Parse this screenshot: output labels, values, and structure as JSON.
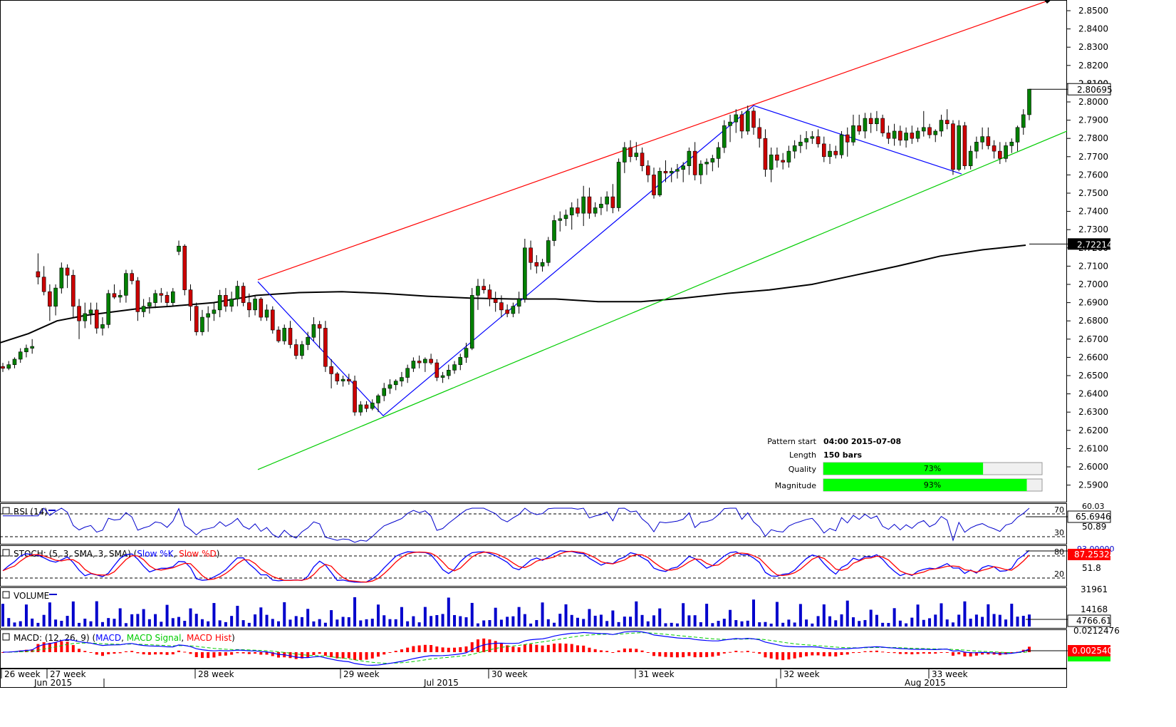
{
  "chart_data": {
    "type": "candlestick",
    "price_axis": {
      "range": [
        2.585,
        2.855
      ],
      "ticks": [
        "2.8500",
        "2.8400",
        "2.8300",
        "2.8200",
        "2.8100",
        "2.8000",
        "2.7900",
        "2.7800",
        "2.7700",
        "2.7600",
        "2.7500",
        "2.7400",
        "2.7300",
        "2.7200",
        "2.7100",
        "2.7000",
        "2.6900",
        "2.6800",
        "2.6700",
        "2.6600",
        "2.6500",
        "2.6400",
        "2.6300",
        "2.6200",
        "2.6100",
        "2.6000",
        "2.5900"
      ],
      "current_price_label": "2.80695",
      "ma_label": "2.72214",
      "hidden_tick_label": "2.8100"
    },
    "candles_o_h_l_c": [
      [
        2.655,
        2.657,
        2.652,
        2.654
      ],
      [
        2.654,
        2.658,
        2.653,
        2.656
      ],
      [
        2.656,
        2.66,
        2.654,
        2.659
      ],
      [
        2.659,
        2.665,
        2.657,
        2.663
      ],
      [
        2.663,
        2.667,
        2.66,
        2.665
      ],
      [
        2.665,
        2.67,
        2.662,
        2.666
      ],
      [
        2.707,
        2.717,
        2.7,
        2.704
      ],
      [
        2.704,
        2.71,
        2.694,
        2.696
      ],
      [
        2.696,
        2.7,
        2.68,
        2.688
      ],
      [
        2.688,
        2.7,
        2.683,
        2.698
      ],
      [
        2.698,
        2.712,
        2.695,
        2.709
      ],
      [
        2.709,
        2.711,
        2.698,
        2.705
      ],
      [
        2.705,
        2.708,
        2.682,
        2.688
      ],
      [
        2.688,
        2.692,
        2.67,
        2.68
      ],
      [
        2.68,
        2.69,
        2.676,
        2.684
      ],
      [
        2.684,
        2.69,
        2.678,
        2.686
      ],
      [
        2.686,
        2.69,
        2.673,
        2.676
      ],
      [
        2.676,
        2.682,
        2.672,
        2.678
      ],
      [
        2.678,
        2.697,
        2.676,
        2.695
      ],
      [
        2.695,
        2.7,
        2.692,
        2.693
      ],
      [
        2.693,
        2.697,
        2.69,
        2.694
      ],
      [
        2.694,
        2.708,
        2.69,
        2.706
      ],
      [
        2.706,
        2.708,
        2.7,
        2.702
      ],
      [
        2.702,
        2.704,
        2.68,
        2.685
      ],
      [
        2.685,
        2.692,
        2.682,
        2.688
      ],
      [
        2.688,
        2.693,
        2.684,
        2.69
      ],
      [
        2.69,
        2.697,
        2.687,
        2.695
      ],
      [
        2.695,
        2.698,
        2.69,
        2.694
      ],
      [
        2.694,
        2.696,
        2.688,
        2.69
      ],
      [
        2.69,
        2.698,
        2.688,
        2.696
      ],
      [
        2.718,
        2.724,
        2.716,
        2.721
      ],
      [
        2.721,
        2.722,
        2.694,
        2.697
      ],
      [
        2.697,
        2.7,
        2.68,
        2.688
      ],
      [
        2.688,
        2.69,
        2.672,
        2.674
      ],
      [
        2.674,
        2.686,
        2.672,
        2.682
      ],
      [
        2.682,
        2.688,
        2.674,
        2.684
      ],
      [
        2.684,
        2.69,
        2.68,
        2.686
      ],
      [
        2.686,
        2.697,
        2.682,
        2.694
      ],
      [
        2.694,
        2.698,
        2.685,
        2.688
      ],
      [
        2.688,
        2.696,
        2.685,
        2.692
      ],
      [
        2.692,
        2.702,
        2.688,
        2.699
      ],
      [
        2.699,
        2.701,
        2.688,
        2.69
      ],
      [
        2.69,
        2.695,
        2.682,
        2.686
      ],
      [
        2.686,
        2.694,
        2.683,
        2.692
      ],
      [
        2.692,
        2.693,
        2.68,
        2.682
      ],
      [
        2.682,
        2.689,
        2.68,
        2.686
      ],
      [
        2.686,
        2.688,
        2.673,
        2.675
      ],
      [
        2.675,
        2.677,
        2.668,
        2.669
      ],
      [
        2.669,
        2.678,
        2.667,
        2.676
      ],
      [
        2.676,
        2.68,
        2.665,
        2.667
      ],
      [
        2.667,
        2.67,
        2.659,
        2.661
      ],
      [
        2.661,
        2.669,
        2.659,
        2.667
      ],
      [
        2.667,
        2.674,
        2.664,
        2.671
      ],
      [
        2.671,
        2.682,
        2.669,
        2.678
      ],
      [
        2.678,
        2.68,
        2.665,
        2.676
      ],
      [
        2.676,
        2.68,
        2.652,
        2.655
      ],
      [
        2.655,
        2.659,
        2.643,
        2.651
      ],
      [
        2.651,
        2.652,
        2.645,
        2.647
      ],
      [
        2.647,
        2.65,
        2.644,
        2.648
      ],
      [
        2.648,
        2.651,
        2.645,
        2.647
      ],
      [
        2.647,
        2.65,
        2.628,
        2.63
      ],
      [
        2.63,
        2.636,
        2.628,
        2.634
      ],
      [
        2.634,
        2.636,
        2.63,
        2.632
      ],
      [
        2.632,
        2.637,
        2.631,
        2.635
      ],
      [
        2.635,
        2.64,
        2.63,
        2.639
      ],
      [
        2.639,
        2.646,
        2.636,
        2.643
      ],
      [
        2.643,
        2.648,
        2.64,
        2.645
      ],
      [
        2.645,
        2.648,
        2.642,
        2.647
      ],
      [
        2.647,
        2.652,
        2.644,
        2.649
      ],
      [
        2.649,
        2.656,
        2.646,
        2.654
      ],
      [
        2.654,
        2.66,
        2.652,
        2.658
      ],
      [
        2.658,
        2.661,
        2.654,
        2.657
      ],
      [
        2.657,
        2.66,
        2.652,
        2.659
      ],
      [
        2.659,
        2.662,
        2.656,
        2.657
      ],
      [
        2.657,
        2.659,
        2.647,
        2.649
      ],
      [
        2.649,
        2.652,
        2.646,
        2.65
      ],
      [
        2.65,
        2.656,
        2.648,
        2.653
      ],
      [
        2.653,
        2.658,
        2.651,
        2.656
      ],
      [
        2.656,
        2.662,
        2.653,
        2.66
      ],
      [
        2.66,
        2.668,
        2.657,
        2.665
      ],
      [
        2.665,
        2.698,
        2.664,
        2.694
      ],
      [
        2.694,
        2.703,
        2.686,
        2.699
      ],
      [
        2.699,
        2.703,
        2.695,
        2.697
      ],
      [
        2.697,
        2.7,
        2.688,
        2.692
      ],
      [
        2.692,
        2.696,
        2.685,
        2.69
      ],
      [
        2.69,
        2.694,
        2.682,
        2.686
      ],
      [
        2.686,
        2.689,
        2.682,
        2.684
      ],
      [
        2.684,
        2.69,
        2.682,
        2.688
      ],
      [
        2.688,
        2.696,
        2.684,
        2.692
      ],
      [
        2.692,
        2.725,
        2.69,
        2.72
      ],
      [
        2.72,
        2.724,
        2.708,
        2.712
      ],
      [
        2.712,
        2.716,
        2.706,
        2.71
      ],
      [
        2.71,
        2.714,
        2.707,
        2.712
      ],
      [
        2.712,
        2.726,
        2.71,
        2.724
      ],
      [
        2.724,
        2.738,
        2.721,
        2.735
      ],
      [
        2.735,
        2.74,
        2.729,
        2.736
      ],
      [
        2.736,
        2.741,
        2.732,
        2.738
      ],
      [
        2.738,
        2.745,
        2.73,
        2.742
      ],
      [
        2.742,
        2.747,
        2.737,
        2.739
      ],
      [
        2.739,
        2.754,
        2.732,
        2.748
      ],
      [
        2.748,
        2.753,
        2.736,
        2.739
      ],
      [
        2.739,
        2.745,
        2.737,
        2.742
      ],
      [
        2.742,
        2.748,
        2.738,
        2.744
      ],
      [
        2.744,
        2.751,
        2.74,
        2.748
      ],
      [
        2.748,
        2.755,
        2.739,
        2.742
      ],
      [
        2.742,
        2.769,
        2.74,
        2.767
      ],
      [
        2.767,
        2.778,
        2.761,
        2.775
      ],
      [
        2.775,
        2.779,
        2.767,
        2.77
      ],
      [
        2.77,
        2.778,
        2.768,
        2.772
      ],
      [
        2.772,
        2.775,
        2.762,
        2.765
      ],
      [
        2.765,
        2.768,
        2.756,
        2.76
      ],
      [
        2.76,
        2.764,
        2.747,
        2.749
      ],
      [
        2.749,
        2.764,
        2.748,
        2.762
      ],
      [
        2.762,
        2.768,
        2.756,
        2.761
      ],
      [
        2.761,
        2.764,
        2.756,
        2.762
      ],
      [
        2.762,
        2.766,
        2.758,
        2.763
      ],
      [
        2.763,
        2.767,
        2.756,
        2.765
      ],
      [
        2.765,
        2.775,
        2.76,
        2.773
      ],
      [
        2.773,
        2.778,
        2.757,
        2.76
      ],
      [
        2.76,
        2.768,
        2.755,
        2.766
      ],
      [
        2.766,
        2.769,
        2.76,
        2.767
      ],
      [
        2.767,
        2.771,
        2.762,
        2.769
      ],
      [
        2.769,
        2.778,
        2.764,
        2.775
      ],
      [
        2.775,
        2.79,
        2.772,
        2.787
      ],
      [
        2.787,
        2.793,
        2.778,
        2.789
      ],
      [
        2.789,
        2.796,
        2.783,
        2.793
      ],
      [
        2.793,
        2.795,
        2.78,
        2.784
      ],
      [
        2.784,
        2.798,
        2.782,
        2.795
      ],
      [
        2.795,
        2.797,
        2.782,
        2.786
      ],
      [
        2.786,
        2.791,
        2.775,
        2.78
      ],
      [
        2.78,
        2.785,
        2.759,
        2.763
      ],
      [
        2.763,
        2.775,
        2.756,
        2.771
      ],
      [
        2.771,
        2.775,
        2.764,
        2.768
      ],
      [
        2.768,
        2.772,
        2.763,
        2.767
      ],
      [
        2.767,
        2.776,
        2.764,
        2.773
      ],
      [
        2.773,
        2.779,
        2.769,
        2.776
      ],
      [
        2.776,
        2.782,
        2.772,
        2.778
      ],
      [
        2.778,
        2.784,
        2.774,
        2.78
      ],
      [
        2.78,
        2.784,
        2.777,
        2.781
      ],
      [
        2.781,
        2.785,
        2.775,
        2.777
      ],
      [
        2.777,
        2.781,
        2.767,
        2.77
      ],
      [
        2.77,
        2.777,
        2.766,
        2.773
      ],
      [
        2.773,
        2.776,
        2.769,
        2.771
      ],
      [
        2.771,
        2.784,
        2.769,
        2.782
      ],
      [
        2.782,
        2.786,
        2.77,
        2.778
      ],
      [
        2.778,
        2.793,
        2.776,
        2.787
      ],
      [
        2.787,
        2.793,
        2.782,
        2.784
      ],
      [
        2.784,
        2.794,
        2.78,
        2.791
      ],
      [
        2.791,
        2.794,
        2.783,
        2.788
      ],
      [
        2.788,
        2.795,
        2.784,
        2.791
      ],
      [
        2.791,
        2.793,
        2.781,
        2.783
      ],
      [
        2.783,
        2.787,
        2.777,
        2.78
      ],
      [
        2.78,
        2.788,
        2.776,
        2.784
      ],
      [
        2.784,
        2.787,
        2.776,
        2.779
      ],
      [
        2.779,
        2.786,
        2.775,
        2.783
      ],
      [
        2.783,
        2.787,
        2.777,
        2.78
      ],
      [
        2.78,
        2.786,
        2.778,
        2.784
      ],
      [
        2.784,
        2.795,
        2.781,
        2.786
      ],
      [
        2.786,
        2.788,
        2.78,
        2.782
      ],
      [
        2.782,
        2.785,
        2.778,
        2.784
      ],
      [
        2.784,
        2.793,
        2.781,
        2.79
      ],
      [
        2.79,
        2.796,
        2.785,
        2.788
      ],
      [
        2.788,
        2.79,
        2.76,
        2.763
      ],
      [
        2.763,
        2.79,
        2.762,
        2.787
      ],
      [
        2.787,
        2.789,
        2.763,
        2.765
      ],
      [
        2.765,
        2.776,
        2.763,
        2.773
      ],
      [
        2.773,
        2.781,
        2.769,
        2.778
      ],
      [
        2.778,
        2.786,
        2.774,
        2.781
      ],
      [
        2.781,
        2.786,
        2.774,
        2.776
      ],
      [
        2.776,
        2.779,
        2.769,
        2.773
      ],
      [
        2.773,
        2.778,
        2.766,
        2.769
      ],
      [
        2.769,
        2.778,
        2.767,
        2.776
      ],
      [
        2.776,
        2.78,
        2.772,
        2.778
      ],
      [
        2.778,
        2.787,
        2.773,
        2.786
      ],
      [
        2.786,
        2.796,
        2.782,
        2.793
      ],
      [
        2.793,
        2.807,
        2.79,
        2.807
      ]
    ],
    "moving_average": [
      [
        0,
        2.668
      ],
      [
        40,
        2.673
      ],
      [
        80,
        2.68
      ],
      [
        120,
        2.683
      ],
      [
        160,
        2.685
      ],
      [
        200,
        2.687
      ],
      [
        240,
        2.688
      ],
      [
        300,
        2.69
      ],
      [
        360,
        2.694
      ],
      [
        420,
        2.6955
      ],
      [
        480,
        2.696
      ],
      [
        540,
        2.695
      ],
      [
        600,
        2.6935
      ],
      [
        660,
        2.6925
      ],
      [
        720,
        2.692
      ],
      [
        780,
        2.692
      ],
      [
        840,
        2.6905
      ],
      [
        900,
        2.6905
      ],
      [
        960,
        2.6925
      ],
      [
        1020,
        2.695
      ],
      [
        1080,
        2.697
      ],
      [
        1140,
        2.7
      ],
      [
        1200,
        2.705
      ],
      [
        1260,
        2.71
      ],
      [
        1320,
        2.7155
      ],
      [
        1380,
        2.719
      ],
      [
        1440,
        2.7215
      ]
    ],
    "channel_upper": [
      [
        362,
        2.7025
      ],
      [
        1475,
        2.856
      ]
    ],
    "channel_lower": [
      [
        362,
        2.5985
      ],
      [
        1498,
        2.784
      ]
    ],
    "zigzag": [
      [
        362,
        2.7015
      ],
      [
        538,
        2.628
      ],
      [
        1058,
        2.798
      ],
      [
        1350,
        2.7605
      ]
    ],
    "time_labels": [
      {
        "week": "26 week",
        "month": "Jun 2015"
      },
      {
        "week": "27 week",
        "month": ""
      },
      {
        "week": "28 week",
        "month": ""
      },
      {
        "week": "29 week",
        "month": "Jul 2015"
      },
      {
        "week": "30 week",
        "month": ""
      },
      {
        "week": "31 week",
        "month": ""
      },
      {
        "week": "32 week",
        "month": ""
      },
      {
        "week": "33 week",
        "month": "Aug 2015"
      }
    ],
    "pattern_info": {
      "pattern_start_label": "Pattern start",
      "pattern_start_value": "04:00 2015-07-08",
      "length_label": "Length",
      "length_value": "150 bars",
      "quality_label": "Quality",
      "quality_value": 0.73,
      "quality_text": "73%",
      "magnitude_label": "Magnitude",
      "magnitude_value": 0.93,
      "magnitude_text": "93%"
    },
    "panels": {
      "rsi": {
        "label": "RSI (14)",
        "level_high": "70",
        "level_low": "30",
        "current": "65.6946",
        "scale": "50.89",
        "clipped_top": "60.03"
      },
      "stoch": {
        "label_prefix": "STOCH: (5, 3, SMA, 3, SMA) (",
        "label_k": "Slow %K",
        "label_sep": ", ",
        "label_d": "Slow %D",
        "label_suffix": ")",
        "level_high": "80",
        "level_low": "20",
        "current": "87.25324",
        "scale": "51.8",
        "clipped_top": "93.00000"
      },
      "volume": {
        "label": "VOLUME",
        "top": "31961",
        "mid": "14168",
        "current": "4766.61"
      },
      "macd": {
        "label_prefix": "MACD: (12, 26, 9) (",
        "label_macd": "MACD",
        "label_sep1": ", ",
        "label_signal": "MACD Signal",
        "label_sep2": ", ",
        "label_hist": "MACD Hist",
        "label_suffix": ")",
        "top": "0.0212476",
        "current": "0.0025404"
      }
    },
    "colors": {
      "bull": "#008000",
      "bear": "#cc0000",
      "ma": "#000000",
      "upper": "#ff0000",
      "lower": "#00cc00",
      "zigzag": "#0000ff",
      "rsi": "#0000cc",
      "stoch_k": "#0000ff",
      "stoch_d": "#ff0000",
      "volume": "#0000cc",
      "macd": "#0000ff",
      "signal": "#00cc00",
      "hist": "#ff0000",
      "bar_fill": "#00ff00"
    }
  }
}
